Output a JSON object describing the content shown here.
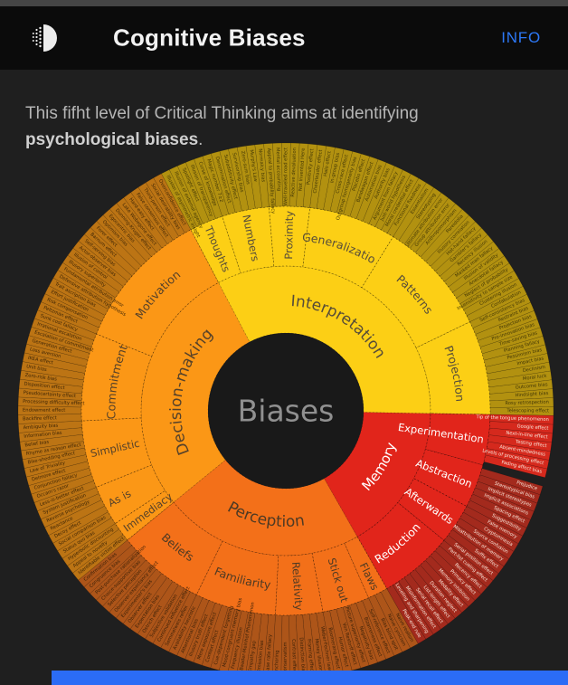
{
  "header": {
    "title": "Cognitive Biases",
    "info_label": "INFO"
  },
  "description": {
    "text_before": "This fifht level of Critical Thinking aims at identifying ",
    "highlight": "psychological biases",
    "text_after": "."
  },
  "colors": {
    "info_link": "#2d78f6",
    "footer_bar": "#2b6cf6"
  },
  "chart_data": {
    "type": "sunburst",
    "center_label": "Biases",
    "start_angle": 332.3,
    "legend_position": "none",
    "categories": [
      {
        "name": "Interpretation",
        "fill": "#fccf15",
        "leaf_fill": "#b29110",
        "leaf_text": "#423706",
        "label_color": "#564c39",
        "children": [
          {
            "name": "Thoughts",
            "leaves": [
              "Illusion of asymmetric insight",
              "Illusion of external agency",
              "Spotlight effect",
              "Illusion of transparency",
              "Curse of knowledge"
            ]
          },
          {
            "name": "Numbers",
            "leaves": [
              "Magic number 7±2",
              "Denomination effect",
              "Subadditivity effect",
              "Survivorship bias",
              "Zero-sum bias",
              "Murphy's Law",
              "Normalcy bias"
            ]
          },
          {
            "name": "Proximity",
            "leaves": [
              "Appeal to probability fallacy",
              "Mental accounting",
              "Well-traveled road effect",
              "Reactive devaluation",
              "Not Invented Here",
              "Positivity effect"
            ]
          },
          {
            "name": "Generalization",
            "leaves": [
              "Cheerleader effect",
              "Halo effect",
              "In-group bias",
              "Cross-race effect",
              "Outgroup homogeneity bias",
              "Placebo effect",
              "Bandwagon effect",
              "Automation bias",
              "Authority bias",
              "Argument from fallacy",
              "Just-world hypothesis",
              "Moral credential effect",
              "Functional fixedness"
            ]
          },
          {
            "name": "Patterns",
            "leaves": [
              "Essentialism",
              "Stereotyping",
              "Ultimate attribution error",
              "Group attribution error",
              "Anthropomorphism",
              "Pareidolia",
              "Illusory correlation",
              "Hot-hand fallacy",
              "Gambler's fallacy",
              "Recency illusion",
              "Masked man fallacy",
              "Illusion of validity",
              "Anecdotal fallacy",
              "Neglect of probability",
              "Insensitivity to sample size",
              "Clustering illusion",
              "Confabulation"
            ]
          },
          {
            "name": "Projection",
            "leaves": [
              "Self-consistency bias",
              "Restraint bias",
              "Projection bias",
              "Pro-innovation bias",
              "Time-saving bias",
              "Planning fallacy",
              "Pessimism bias",
              "Impact bias",
              "Declinism",
              "Moral luck",
              "Outcome bias",
              "Hindsight bias",
              "Rosy retrospection",
              "Telescoping effect"
            ]
          }
        ]
      },
      {
        "name": "Memory",
        "fill": "#e1251b",
        "leaf_fill": "#a32a1d",
        "leaf_text": "#f6e3d7",
        "label_color": "#ffffff",
        "children": [
          {
            "name": "Experimentation",
            "gap_after": 1,
            "leaf_fill": "#d5291d",
            "leaves": [
              "Tip of the tongue phenomenon",
              "Google effect",
              "Next-in-line effect",
              "Testing effect",
              "Absent-mindedness",
              "Levels of processing effect",
              "Fading affect bias"
            ]
          },
          {
            "name": "Abstraction",
            "leaves": [
              "Prejudice",
              "Stereotypical bias",
              "Implicit stereotypes",
              "Implicit associations",
              "Spacing effect",
              "Suggestibility"
            ]
          },
          {
            "name": "Afterwards",
            "leaves": [
              "False memory",
              "Cryptomnesia",
              "Source confusion",
              "Misattribution of memory",
              "Suffix effect",
              "Serial position effect"
            ]
          },
          {
            "name": "Reduction",
            "leaves": [
              "Part-list cueing effect",
              "Recency effect",
              "Primacy effect",
              "Memory inhibition",
              "Modality effect",
              "Duration neglect",
              "List-length effect",
              "Serial recall effect",
              "Misinformation effect",
              "Leveling and sharpening",
              "Peak-end rule"
            ]
          }
        ]
      },
      {
        "name": "Perception",
        "fill": "#f37019",
        "leaf_fill": "#ad5519",
        "leaf_text": "#3a2008",
        "label_color": "#4e3a24",
        "children": [
          {
            "name": "Flaws",
            "leaves": [
              "Naive realism",
              "Naive cynicism",
              "Bias blind spot"
            ]
          },
          {
            "name": "Stick out",
            "leaves": [
              "Self-reference effect",
              "Bizarreness effect",
              "Negativity bias",
              "Picture superiority effect",
              "Von Restorff effect",
              "Humor effect",
              "Boomerang effect"
            ]
          },
          {
            "name": "Relativity",
            "leaves": [
              "Weber-Fechner law",
              "Money illusion",
              "Framing effect",
              "Distinction bias",
              "Contrast effect",
              "Conservatism",
              "Anchoring"
            ]
          },
          {
            "name": "Familiarity",
            "leaves": [
              "Base rate fallacy",
              "Omission bias",
              "Empathy gap",
              "Baader-Meinhof Phenomenon",
              "Frequency illusion",
              "Mood-congruent memory bias",
              "Cue-dependent forgetting",
              "Context effect",
              "Mere exposure effect",
              "Illusory truth effect",
              "Attentional bias",
              "Availability heuristic"
            ]
          },
          {
            "name": "Beliefs",
            "leaves": [
              "Semmelweis reflex",
              "Continued influence effect",
              "Subjective validation",
              "Ostrich effect",
              "Expectation bias",
              "Observer effect",
              "Experimenter's bias",
              "Observer-expectancy effect",
              "Selective perception",
              "Choice-supportive bias",
              "Post-purchase rationalization",
              "Congruence bias",
              "Confirmation bias"
            ]
          }
        ]
      },
      {
        "name": "Decision-making",
        "fill": "#fb9716",
        "leaf_fill": "#bc7414",
        "leaf_text": "#3f2606",
        "label_color": "#55412a",
        "children": [
          {
            "name": "Immediacy",
            "leaves": [
              "Identifiable victim effect",
              "Appeal to novelty",
              "Hyperbolic discounting"
            ]
          },
          {
            "name": "As is",
            "leaves": [
              "Status quo bias",
              "Social comparison bias",
              "Decoy effect",
              "Reactance",
              "Reverse psychology",
              "System justification"
            ]
          },
          {
            "name": "Simplistic",
            "leaves": [
              "Less-is-better effect",
              "Occam's razor",
              "Conjunction fallacy",
              "Delmore effect",
              "Law of Triviality",
              "Bike-shedding effect",
              "Rhyme as reason effect",
              "Belief bias",
              "Information bias",
              "Ambiguity bias"
            ]
          },
          {
            "name": "Commitment",
            "leaves": [
              "Backfire effect",
              "Endowment effect",
              "Processing difficulty effect",
              "Pseudocertainty effect",
              "Disposition effect",
              "Zero-risk bias",
              "Unit bias",
              "IKEA effect",
              "Loss aversion",
              "Generation effect",
              "Escalation of commitment",
              "Irrational escalation",
              "Sunk cost fallacy"
            ]
          },
          {
            "name": "Motivation",
            "leaves": [
              "Peltzman effect",
              "Risk compensation",
              "Effort justification",
              "Trait ascription bias",
              "Defensive attribution hypothesis",
              "Fundamental attribution error",
              "Illusory superiority",
              "Illusion of control",
              "Actor-observer bias",
              "Self-serving bias",
              "Barnum effect",
              "Forer effect",
              "Optimism bias",
              "Egocentric bias",
              "Dunning-Kruger effect",
              "Lake Wobegone effect",
              "Hard-easy effect",
              "False consensus effect",
              "Third-person effect",
              "Social desirability bias",
              "Overconfidence effect"
            ]
          }
        ]
      }
    ]
  }
}
